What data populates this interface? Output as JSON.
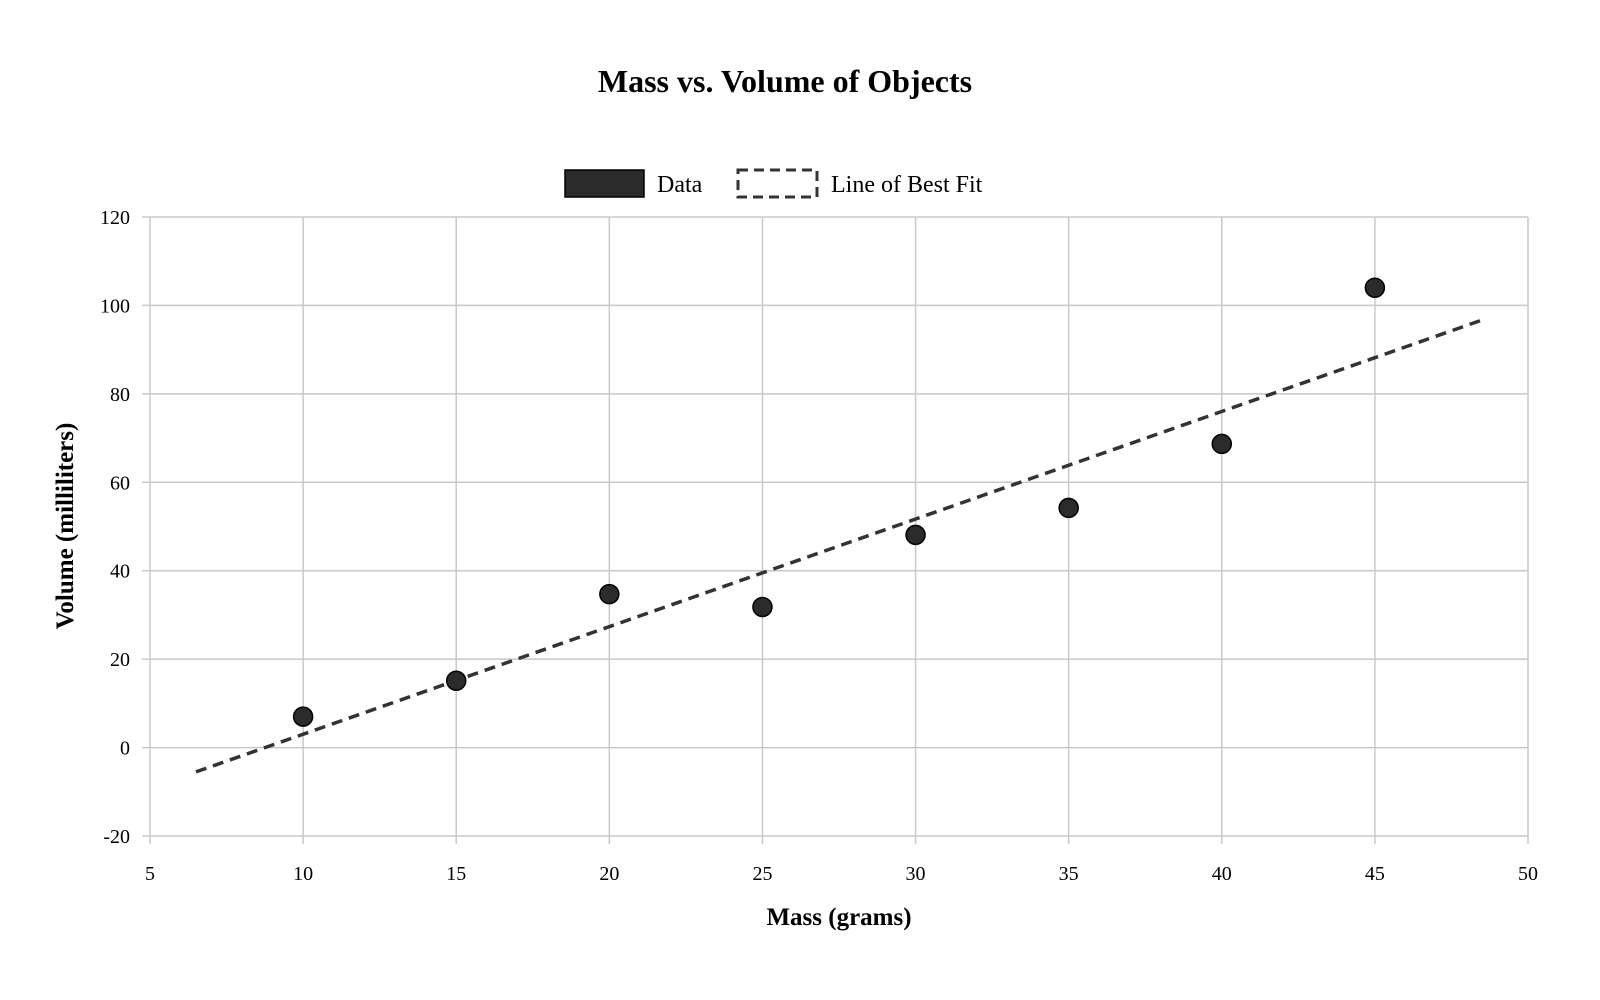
{
  "chart_data": {
    "type": "scatter",
    "title": "Mass vs. Volume of Objects",
    "xlabel": "Mass (grams)",
    "ylabel": "Volume (milliliters)",
    "xlim": [
      5,
      50
    ],
    "ylim": [
      -20,
      120
    ],
    "xticks": [
      5,
      10,
      15,
      20,
      25,
      30,
      35,
      40,
      45,
      50
    ],
    "yticks": [
      -20,
      0,
      20,
      40,
      60,
      80,
      100,
      120
    ],
    "grid": true,
    "legend": {
      "placement": "top-center",
      "entries": [
        "Data",
        "Line of Best Fit"
      ]
    },
    "series": [
      {
        "name": "Data",
        "type": "scatter",
        "color": "#2b2b2b",
        "x": [
          10,
          15,
          20,
          25,
          30,
          35,
          40,
          45
        ],
        "y": [
          7,
          15.1,
          34.7,
          31.8,
          48.1,
          54.2,
          68.7,
          104
        ]
      },
      {
        "name": "Line of Best Fit",
        "type": "line",
        "style": "dashed",
        "color": "#333333",
        "x": [
          6.5,
          48.5
        ],
        "y": [
          -5.5,
          96.7
        ]
      }
    ]
  }
}
